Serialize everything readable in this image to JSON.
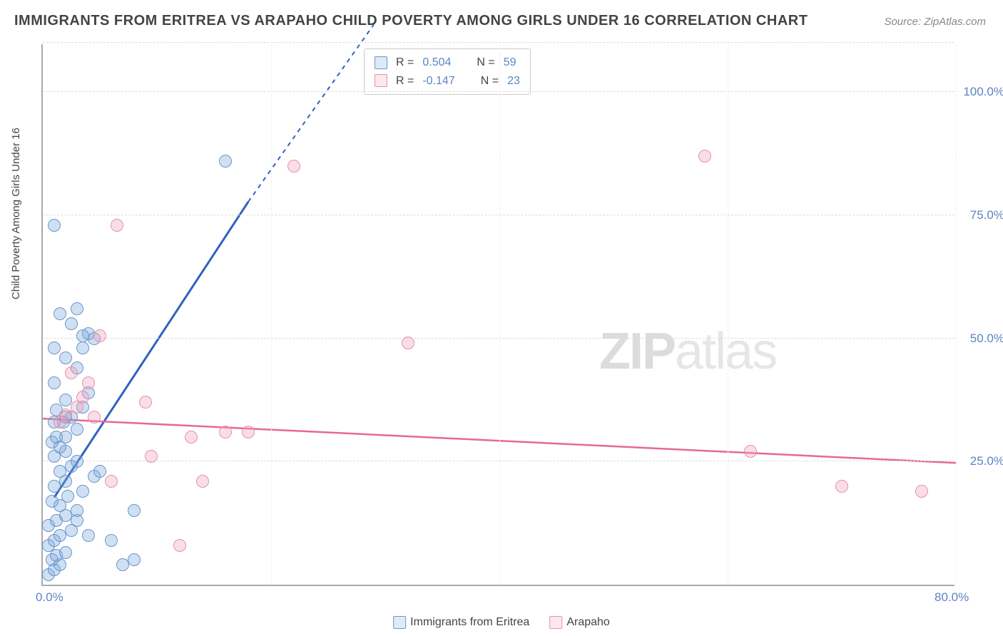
{
  "title": "IMMIGRANTS FROM ERITREA VS ARAPAHO CHILD POVERTY AMONG GIRLS UNDER 16 CORRELATION CHART",
  "source": "Source: ZipAtlas.com",
  "watermark_a": "ZIP",
  "watermark_b": "atlas",
  "chart": {
    "type": "scatter",
    "background_color": "#ffffff",
    "grid_color": "#dddddd",
    "axis_color": "#aaaaaa",
    "xlim": [
      0,
      80
    ],
    "ylim": [
      0,
      110
    ],
    "x_ticks": [
      {
        "v": 0,
        "label": "0.0%"
      },
      {
        "v": 80,
        "label": "80.0%"
      }
    ],
    "y_ticks": [
      {
        "v": 25,
        "label": "25.0%"
      },
      {
        "v": 50,
        "label": "50.0%"
      },
      {
        "v": 75,
        "label": "75.0%"
      },
      {
        "v": 100,
        "label": "100.0%"
      }
    ],
    "y_gridlines": [
      25,
      50,
      75,
      100,
      110
    ],
    "x_gridlines": [
      20,
      40,
      60,
      80
    ],
    "y_axis_label": "Child Poverty Among Girls Under 16",
    "series": {
      "blue": {
        "label": "Immigrants from Eritrea",
        "color_fill": "#a7c4e6",
        "color_stroke": "#6a95cc",
        "marker_size_px": 18,
        "R": "0.504",
        "N": "59",
        "trend": {
          "x1": 1,
          "y1": 18,
          "x2": 18,
          "y2": 78,
          "stroke": "#2f63c0",
          "width": 3,
          "dash_extend_to": {
            "x": 29,
            "y": 114
          }
        },
        "points": [
          [
            0.5,
            2
          ],
          [
            1,
            3
          ],
          [
            1.5,
            4
          ],
          [
            0.8,
            5
          ],
          [
            1.2,
            6
          ],
          [
            2,
            6.5
          ],
          [
            0.5,
            8
          ],
          [
            1,
            9
          ],
          [
            1.5,
            10
          ],
          [
            2.5,
            11
          ],
          [
            0.5,
            12
          ],
          [
            1.2,
            13
          ],
          [
            2,
            14
          ],
          [
            3,
            15
          ],
          [
            1.5,
            16
          ],
          [
            0.8,
            17
          ],
          [
            2.2,
            18
          ],
          [
            3.5,
            19
          ],
          [
            1,
            20
          ],
          [
            2,
            21
          ],
          [
            4.5,
            22
          ],
          [
            1.5,
            23
          ],
          [
            2.5,
            24
          ],
          [
            3,
            25
          ],
          [
            1,
            26
          ],
          [
            2,
            27
          ],
          [
            1.5,
            28
          ],
          [
            0.8,
            29
          ],
          [
            2,
            30
          ],
          [
            3,
            31.5
          ],
          [
            1.8,
            33
          ],
          [
            2.5,
            34
          ],
          [
            1.2,
            35.5
          ],
          [
            3.5,
            36
          ],
          [
            2,
            37.5
          ],
          [
            4,
            39
          ],
          [
            1,
            41
          ],
          [
            3,
            44
          ],
          [
            2,
            46
          ],
          [
            3.5,
            48
          ],
          [
            4,
            51
          ],
          [
            2.5,
            53
          ],
          [
            3,
            56
          ],
          [
            4.5,
            50
          ],
          [
            3.5,
            50.5
          ],
          [
            1,
            48
          ],
          [
            2,
            34
          ],
          [
            1.5,
            55
          ],
          [
            1,
            73
          ],
          [
            7,
            4
          ],
          [
            6,
            9
          ],
          [
            8,
            15
          ],
          [
            5,
            23
          ],
          [
            4,
            10
          ],
          [
            3,
            13
          ],
          [
            1.2,
            30
          ],
          [
            1,
            33
          ],
          [
            8,
            5
          ],
          [
            16,
            86
          ]
        ]
      },
      "pink": {
        "label": "Arapaho",
        "color_fill": "#f4bfcd",
        "color_stroke": "#e88fab",
        "marker_size_px": 18,
        "R": "-0.147",
        "N": "23",
        "trend": {
          "x1": 0,
          "y1": 34,
          "x2": 80,
          "y2": 25,
          "stroke": "#e56a92",
          "width": 2.5
        },
        "points": [
          [
            1.5,
            33
          ],
          [
            2,
            34.5
          ],
          [
            2.5,
            43
          ],
          [
            3,
            36
          ],
          [
            3.5,
            38
          ],
          [
            4,
            41
          ],
          [
            4.5,
            34
          ],
          [
            5,
            50.5
          ],
          [
            6,
            21
          ],
          [
            6.5,
            73
          ],
          [
            9,
            37
          ],
          [
            9.5,
            26
          ],
          [
            12,
            8
          ],
          [
            13,
            30
          ],
          [
            14,
            21
          ],
          [
            16,
            31
          ],
          [
            18,
            31
          ],
          [
            22,
            85
          ],
          [
            32,
            49
          ],
          [
            58,
            87
          ],
          [
            62,
            27
          ],
          [
            70,
            20
          ],
          [
            77,
            19
          ]
        ]
      }
    }
  },
  "legend_bottom": {
    "items": [
      {
        "key": "blue",
        "label": "Immigrants from Eritrea"
      },
      {
        "key": "pink",
        "label": "Arapaho"
      }
    ]
  },
  "stats_legend": {
    "rows": [
      {
        "key": "blue",
        "R_label": "R =",
        "R": "0.504",
        "N_label": "N =",
        "N": "59"
      },
      {
        "key": "pink",
        "R_label": "R =",
        "R": "-0.147",
        "N_label": "N =",
        "N": "23"
      }
    ]
  }
}
